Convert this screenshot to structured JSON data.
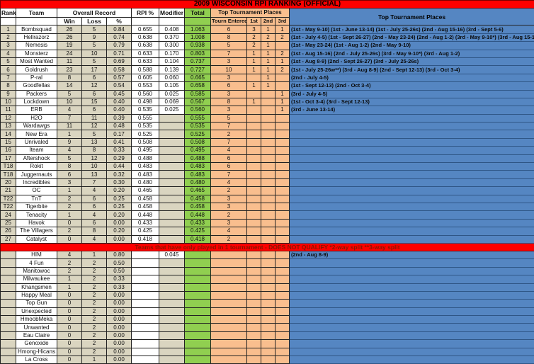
{
  "title": "2009 WISCONSIN RPI RANKING (OFFICIAL)",
  "divider_note": "Teams that have only played in 1 tournament - DOES NOT QUALIFY   *2-way split  **3-way split",
  "colors": {
    "banner_red": "#fe0000",
    "divider_text": "#8b1500",
    "tan": "#dad5c0",
    "total_green": "#90cf50",
    "places_orange": "#f9be8e",
    "detail_blue": "#5586c2"
  },
  "headers": {
    "rank": "Rank",
    "team": "Team",
    "overall_record": "Overall Record",
    "win": "Win",
    "loss": "Loss",
    "pct": "%",
    "rpi": "RPI %",
    "modifier": "Modifier",
    "total": "Total",
    "top_places_group": "Top Tournament Places",
    "tourn_entered": "Tourn Entered",
    "first": "1st",
    "second": "2nd",
    "third": "3rd",
    "top_places_detail": "Top Tournament Places"
  },
  "ranked_teams": [
    {
      "rank": "1",
      "team": "Bombsquad",
      "win": "26",
      "loss": "5",
      "pct": "0.84",
      "rpi": "0.655",
      "modifier": "0.408",
      "total": "1.063",
      "tourn": "6",
      "first": "3",
      "second": "1",
      "third": "1",
      "places": "(1st - May 9-10) (1st - June 13-14) (1st - July 25-26s) (2nd - Aug 15-16) (3rd - Sept 5-6)"
    },
    {
      "rank": "2",
      "team": "Hellrazorz",
      "win": "26",
      "loss": "9",
      "pct": "0.74",
      "rpi": "0.638",
      "modifier": "0.370",
      "total": "1.008",
      "tourn": "8",
      "first": "2",
      "second": "2",
      "third": "2",
      "places": "(1st - July 4-5) (1st - Sept 26-27) (2nd - May 23-24) (2nd - Aug 1-2) (3rd - May 9-10*) (3rd - Aug 15-16)"
    },
    {
      "rank": "3",
      "team": "Nemesis",
      "win": "19",
      "loss": "5",
      "pct": "0.79",
      "rpi": "0.638",
      "modifier": "0.300",
      "total": "0.938",
      "tourn": "5",
      "first": "2",
      "second": "1",
      "third": "",
      "places": "(1st - May 23-24) (1st - Aug 1-2) (2nd - May 9-10)"
    },
    {
      "rank": "4",
      "team": "Monsterz",
      "win": "24",
      "loss": "10",
      "pct": "0.71",
      "rpi": "0.633",
      "modifier": "0.170",
      "total": "0.803",
      "tourn": "7",
      "first": "1",
      "second": "1",
      "third": "2",
      "places": "(1st - Aug 15-16) (2nd - July 25-26s) (3rd - May 9-10*) (3rd - Aug 1-2)"
    },
    {
      "rank": "5",
      "team": "Most Wanted",
      "win": "11",
      "loss": "5",
      "pct": "0.69",
      "rpi": "0.633",
      "modifier": "0.104",
      "total": "0.737",
      "tourn": "3",
      "first": "1",
      "second": "1",
      "third": "1",
      "places": "(1st - Aug 8-9) (2nd - Sept 26-27) (3rd - July 25-26s)"
    },
    {
      "rank": "6",
      "team": "Goldrush",
      "win": "23",
      "loss": "17",
      "pct": "0.58",
      "rpi": "0.588",
      "modifier": "0.139",
      "total": "0.727",
      "tourn": "10",
      "first": "1",
      "second": "1",
      "third": "2",
      "places": "(1st - July 25-26w**) (3rd - Aug 8-9) (2nd - Sept 12-13) (3rd - Oct 3-4)"
    },
    {
      "rank": "7",
      "team": "P-ral",
      "win": "8",
      "loss": "6",
      "pct": "0.57",
      "rpi": "0.605",
      "modifier": "0.060",
      "total": "0.665",
      "tourn": "3",
      "first": "",
      "second": "1",
      "third": "",
      "places": "(2nd - July 4-5)"
    },
    {
      "rank": "8",
      "team": "Goodfellas",
      "win": "14",
      "loss": "12",
      "pct": "0.54",
      "rpi": "0.553",
      "modifier": "0.105",
      "total": "0.658",
      "tourn": "6",
      "first": "1",
      "second": "1",
      "third": "",
      "places": "(1st - Sept 12-13) (2nd - Oct 3-4)"
    },
    {
      "rank": "9",
      "team": "Packers",
      "win": "5",
      "loss": "6",
      "pct": "0.45",
      "rpi": "0.560",
      "modifier": "0.025",
      "total": "0.585",
      "tourn": "3",
      "first": "",
      "second": "",
      "third": "1",
      "places": "(3rd - July 4-5)"
    },
    {
      "rank": "10",
      "team": "Lockdown",
      "win": "10",
      "loss": "15",
      "pct": "0.40",
      "rpi": "0.498",
      "modifier": "0.069",
      "total": "0.567",
      "tourn": "8",
      "first": "1",
      "second": "",
      "third": "1",
      "places": "(1st - Oct 3-4) (3rd - Sept 12-13)"
    },
    {
      "rank": "11",
      "team": "ERB",
      "win": "4",
      "loss": "6",
      "pct": "0.40",
      "rpi": "0.535",
      "modifier": "0.025",
      "total": "0.560",
      "tourn": "3",
      "first": "",
      "second": "",
      "third": "1",
      "places": "(3rd - June 13-14)"
    },
    {
      "rank": "12",
      "team": "H2O",
      "win": "7",
      "loss": "11",
      "pct": "0.39",
      "rpi": "0.555",
      "modifier": "",
      "total": "0.555",
      "tourn": "5",
      "first": "",
      "second": "",
      "third": "",
      "places": ""
    },
    {
      "rank": "13",
      "team": "Wardawgs",
      "win": "11",
      "loss": "12",
      "pct": "0.48",
      "rpi": "0.535",
      "modifier": "",
      "total": "0.535",
      "tourn": "7",
      "first": "",
      "second": "",
      "third": "",
      "places": ""
    },
    {
      "rank": "14",
      "team": "New Era",
      "win": "1",
      "loss": "5",
      "pct": "0.17",
      "rpi": "0.525",
      "modifier": "",
      "total": "0.525",
      "tourn": "2",
      "first": "",
      "second": "",
      "third": "",
      "places": ""
    },
    {
      "rank": "15",
      "team": "Unrivaled",
      "win": "9",
      "loss": "13",
      "pct": "0.41",
      "rpi": "0.508",
      "modifier": "",
      "total": "0.508",
      "tourn": "7",
      "first": "",
      "second": "",
      "third": "",
      "places": ""
    },
    {
      "rank": "16",
      "team": "Iteam",
      "win": "4",
      "loss": "8",
      "pct": "0.33",
      "rpi": "0.495",
      "modifier": "",
      "total": "0.495",
      "tourn": "4",
      "first": "",
      "second": "",
      "third": "",
      "places": ""
    },
    {
      "rank": "17",
      "team": "Aftershock",
      "win": "5",
      "loss": "12",
      "pct": "0.29",
      "rpi": "0.488",
      "modifier": "",
      "total": "0.488",
      "tourn": "6",
      "first": "",
      "second": "",
      "third": "",
      "places": ""
    },
    {
      "rank": "T18",
      "team": "Rokit",
      "win": "8",
      "loss": "10",
      "pct": "0.44",
      "rpi": "0.483",
      "modifier": "",
      "total": "0.483",
      "tourn": "6",
      "first": "",
      "second": "",
      "third": "",
      "places": ""
    },
    {
      "rank": "T18",
      "team": "Juggernauts",
      "win": "6",
      "loss": "13",
      "pct": "0.32",
      "rpi": "0.483",
      "modifier": "",
      "total": "0.483",
      "tourn": "7",
      "first": "",
      "second": "",
      "third": "",
      "places": ""
    },
    {
      "rank": "20",
      "team": "Incredibles",
      "win": "3",
      "loss": "7",
      "pct": "0.30",
      "rpi": "0.480",
      "modifier": "",
      "total": "0.480",
      "tourn": "4",
      "first": "",
      "second": "",
      "third": "",
      "places": ""
    },
    {
      "rank": "21",
      "team": "OC",
      "win": "1",
      "loss": "4",
      "pct": "0.20",
      "rpi": "0.465",
      "modifier": "",
      "total": "0.465",
      "tourn": "2",
      "first": "",
      "second": "",
      "third": "",
      "places": ""
    },
    {
      "rank": "T22",
      "team": "TnT",
      "win": "2",
      "loss": "6",
      "pct": "0.25",
      "rpi": "0.458",
      "modifier": "",
      "total": "0.458",
      "tourn": "3",
      "first": "",
      "second": "",
      "third": "",
      "places": ""
    },
    {
      "rank": "T22",
      "team": "Tigerbite",
      "win": "2",
      "loss": "6",
      "pct": "0.25",
      "rpi": "0.458",
      "modifier": "",
      "total": "0.458",
      "tourn": "3",
      "first": "",
      "second": "",
      "third": "",
      "places": ""
    },
    {
      "rank": "24",
      "team": "Tenacity",
      "win": "1",
      "loss": "4",
      "pct": "0.20",
      "rpi": "0.448",
      "modifier": "",
      "total": "0.448",
      "tourn": "2",
      "first": "",
      "second": "",
      "third": "",
      "places": ""
    },
    {
      "rank": "25",
      "team": "Havok",
      "win": "0",
      "loss": "6",
      "pct": "0.00",
      "rpi": "0.433",
      "modifier": "",
      "total": "0.433",
      "tourn": "3",
      "first": "",
      "second": "",
      "third": "",
      "places": ""
    },
    {
      "rank": "26",
      "team": "The Villagers",
      "win": "2",
      "loss": "8",
      "pct": "0.20",
      "rpi": "0.425",
      "modifier": "",
      "total": "0.425",
      "tourn": "4",
      "first": "",
      "second": "",
      "third": "",
      "places": ""
    },
    {
      "rank": "27",
      "team": "Catalyst",
      "win": "0",
      "loss": "4",
      "pct": "0.00",
      "rpi": "0.418",
      "modifier": "",
      "total": "0.418",
      "tourn": "2",
      "first": "",
      "second": "",
      "third": "",
      "places": ""
    }
  ],
  "unqualified_teams": [
    {
      "rank": "",
      "team": "HIM",
      "win": "4",
      "loss": "1",
      "pct": "0.80",
      "rpi": "",
      "modifier": "0.045",
      "total": "",
      "tourn": "",
      "first": "",
      "second": "",
      "third": "",
      "places": "(2nd - Aug 8-9)"
    },
    {
      "rank": "",
      "team": "4 Fun",
      "win": "2",
      "loss": "2",
      "pct": "0.50",
      "rpi": "",
      "modifier": "",
      "total": "",
      "tourn": "",
      "first": "",
      "second": "",
      "third": "",
      "places": ""
    },
    {
      "rank": "",
      "team": "Manitowoc",
      "win": "2",
      "loss": "2",
      "pct": "0.50",
      "rpi": "",
      "modifier": "",
      "total": "",
      "tourn": "",
      "first": "",
      "second": "",
      "third": "",
      "places": ""
    },
    {
      "rank": "",
      "team": "Milwaukee",
      "win": "1",
      "loss": "2",
      "pct": "0.33",
      "rpi": "",
      "modifier": "",
      "total": "",
      "tourn": "",
      "first": "",
      "second": "",
      "third": "",
      "places": ""
    },
    {
      "rank": "",
      "team": "Khangsmen",
      "win": "1",
      "loss": "2",
      "pct": "0.33",
      "rpi": "",
      "modifier": "",
      "total": "",
      "tourn": "",
      "first": "",
      "second": "",
      "third": "",
      "places": ""
    },
    {
      "rank": "",
      "team": "Happy Meal",
      "win": "0",
      "loss": "2",
      "pct": "0.00",
      "rpi": "",
      "modifier": "",
      "total": "",
      "tourn": "",
      "first": "",
      "second": "",
      "third": "",
      "places": ""
    },
    {
      "rank": "",
      "team": "Top Gun",
      "win": "0",
      "loss": "2",
      "pct": "0.00",
      "rpi": "",
      "modifier": "",
      "total": "",
      "tourn": "",
      "first": "",
      "second": "",
      "third": "",
      "places": ""
    },
    {
      "rank": "",
      "team": "Unexpected",
      "win": "0",
      "loss": "2",
      "pct": "0.00",
      "rpi": "",
      "modifier": "",
      "total": "",
      "tourn": "",
      "first": "",
      "second": "",
      "third": "",
      "places": ""
    },
    {
      "rank": "",
      "team": "HmoobMeka",
      "win": "0",
      "loss": "2",
      "pct": "0.00",
      "rpi": "",
      "modifier": "",
      "total": "",
      "tourn": "",
      "first": "",
      "second": "",
      "third": "",
      "places": ""
    },
    {
      "rank": "",
      "team": "Unwanted",
      "win": "0",
      "loss": "2",
      "pct": "0.00",
      "rpi": "",
      "modifier": "",
      "total": "",
      "tourn": "",
      "first": "",
      "second": "",
      "third": "",
      "places": ""
    },
    {
      "rank": "",
      "team": "Eau Claire",
      "win": "0",
      "loss": "2",
      "pct": "0.00",
      "rpi": "",
      "modifier": "",
      "total": "",
      "tourn": "",
      "first": "",
      "second": "",
      "third": "",
      "places": ""
    },
    {
      "rank": "",
      "team": "Genoxide",
      "win": "0",
      "loss": "2",
      "pct": "0.00",
      "rpi": "",
      "modifier": "",
      "total": "",
      "tourn": "",
      "first": "",
      "second": "",
      "third": "",
      "places": ""
    },
    {
      "rank": "",
      "team": "Hmong-Hicans",
      "win": "0",
      "loss": "2",
      "pct": "0.00",
      "rpi": "",
      "modifier": "",
      "total": "",
      "tourn": "",
      "first": "",
      "second": "",
      "third": "",
      "places": ""
    },
    {
      "rank": "",
      "team": "La Cross",
      "win": "0",
      "loss": "1",
      "pct": "0.00",
      "rpi": "",
      "modifier": "",
      "total": "",
      "tourn": "",
      "first": "",
      "second": "",
      "third": "",
      "places": ""
    }
  ]
}
